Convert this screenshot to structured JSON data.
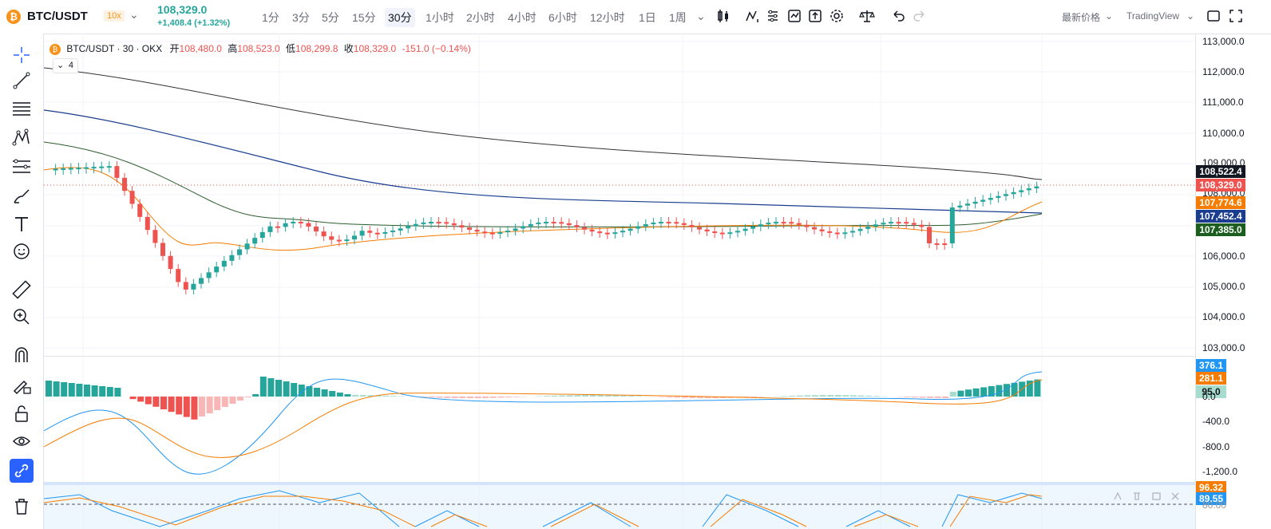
{
  "header": {
    "symbol": "BTC/USDT",
    "leverage": "10x",
    "last_price": "108,329.0",
    "change": "+1,408.4 (+1.32%)",
    "timeframes": [
      "1分",
      "3分",
      "5分",
      "15分",
      "30分",
      "1小时",
      "2小时",
      "4小时",
      "6小时",
      "12小时",
      "1日",
      "1周"
    ],
    "active_timeframe": "30分",
    "price_type": "最新价格",
    "view": "TradingView"
  },
  "legend": {
    "title": "BTC/USDT · 30 · OKX",
    "open_label": "开",
    "open": "108,480.0",
    "high_label": "高",
    "high": "108,523.0",
    "low_label": "低",
    "low": "108,299.8",
    "close_label": "收",
    "close": "108,329.0",
    "change": "-151.0 (−0.14%)",
    "indicator_count": "4"
  },
  "price_axis": {
    "ticks": [
      "113,000.0",
      "112,000.0",
      "111,000.0",
      "110,000.0",
      "109,000.0",
      "108,000.0",
      "106,000.0",
      "105,000.0",
      "104,000.0",
      "103,000.0"
    ],
    "tags": [
      {
        "text": "108,522.4",
        "color": "#131722"
      },
      {
        "text": "108,329.0",
        "color": "#ef5350"
      },
      {
        "text": "107,774.6",
        "color": "#f57c00"
      },
      {
        "text": "107,452.4",
        "color": "#1a3d8f"
      },
      {
        "text": "107,385.0",
        "color": "#1b5e20"
      }
    ]
  },
  "macd_axis": {
    "ticks": [
      "0.0",
      "-400.0",
      "-800.0",
      "-1,200.0"
    ],
    "tags": [
      {
        "text": "376.1",
        "color": "#2196f3"
      },
      {
        "text": "281.1",
        "color": "#f57c00"
      },
      {
        "text": "95.0",
        "color": "#a8dccd"
      }
    ]
  },
  "stoch_axis": {
    "ticks": [
      "80.00"
    ],
    "tags": [
      {
        "text": "96.32",
        "color": "#f57c00"
      },
      {
        "text": "89.55",
        "color": "#2196f3"
      }
    ]
  },
  "colors": {
    "up": "#26a69a",
    "down": "#ef5350",
    "ma_orange": "#f57c00",
    "ma_blue": "#1a3d8f",
    "ma_green": "#2e5e2e",
    "ma_black": "#333333"
  }
}
